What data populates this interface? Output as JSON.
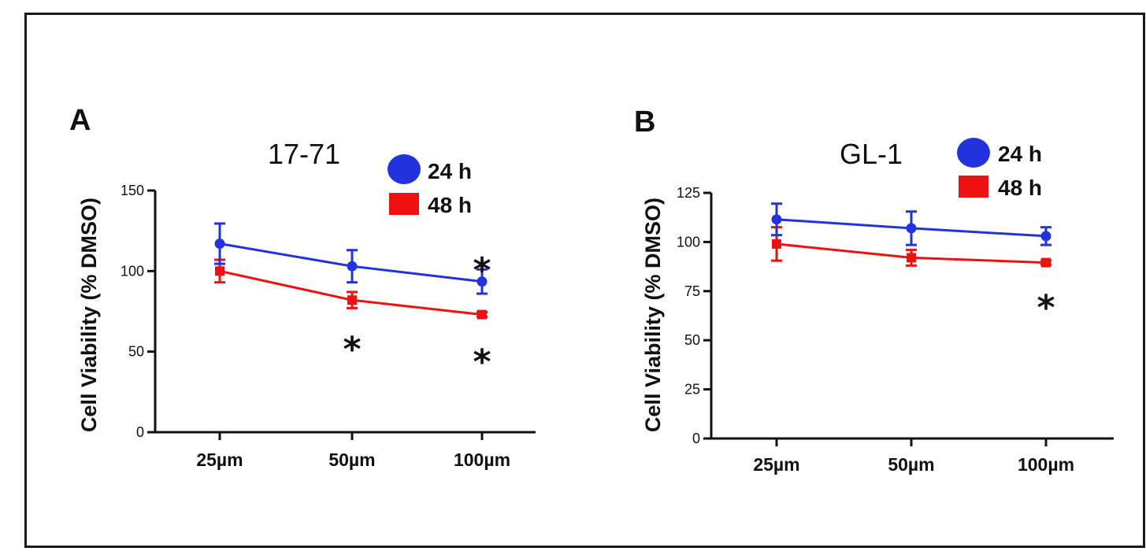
{
  "colors": {
    "series_24h": "#2233dd",
    "series_48h": "#ee1111",
    "axis": "#111111"
  },
  "chart_data": [
    {
      "panel": "A",
      "type": "line",
      "title": "17-71",
      "xlabel": "",
      "ylabel": "Cell Viability (% DMSO)",
      "categories": [
        "25µm",
        "50µm",
        "100µm"
      ],
      "ylim": [
        0,
        150
      ],
      "yticks": [
        0,
        50,
        100,
        150
      ],
      "legend_position": "top-right",
      "series": [
        {
          "name": "24 h",
          "marker": "circle",
          "values": [
            117,
            103,
            93.5
          ],
          "errors": [
            12.5,
            10,
            7.5
          ]
        },
        {
          "name": "48 h",
          "marker": "square",
          "values": [
            100,
            82,
            73
          ],
          "errors": [
            7,
            5,
            1.5
          ]
        }
      ],
      "annotations": [
        {
          "text": "*",
          "category": "100µm",
          "y": 107
        },
        {
          "text": "*",
          "category": "50µm",
          "y": 58
        },
        {
          "text": "*",
          "category": "100µm",
          "y": 50
        }
      ]
    },
    {
      "panel": "B",
      "type": "line",
      "title": "GL-1",
      "xlabel": "",
      "ylabel": "Cell Viability (% DMSO)",
      "categories": [
        "25µm",
        "50µm",
        "100µm"
      ],
      "ylim": [
        0,
        125
      ],
      "yticks": [
        0,
        25,
        50,
        75,
        100,
        125
      ],
      "legend_position": "top-right",
      "series": [
        {
          "name": "24 h",
          "marker": "circle",
          "values": [
            111.5,
            107,
            103
          ],
          "errors": [
            8,
            8.5,
            4.5
          ]
        },
        {
          "name": "48 h",
          "marker": "square",
          "values": [
            99,
            92,
            89.5
          ],
          "errors": [
            8.5,
            4,
            1
          ]
        }
      ],
      "annotations": [
        {
          "text": "*",
          "category": "100µm",
          "y": 72
        }
      ]
    }
  ]
}
